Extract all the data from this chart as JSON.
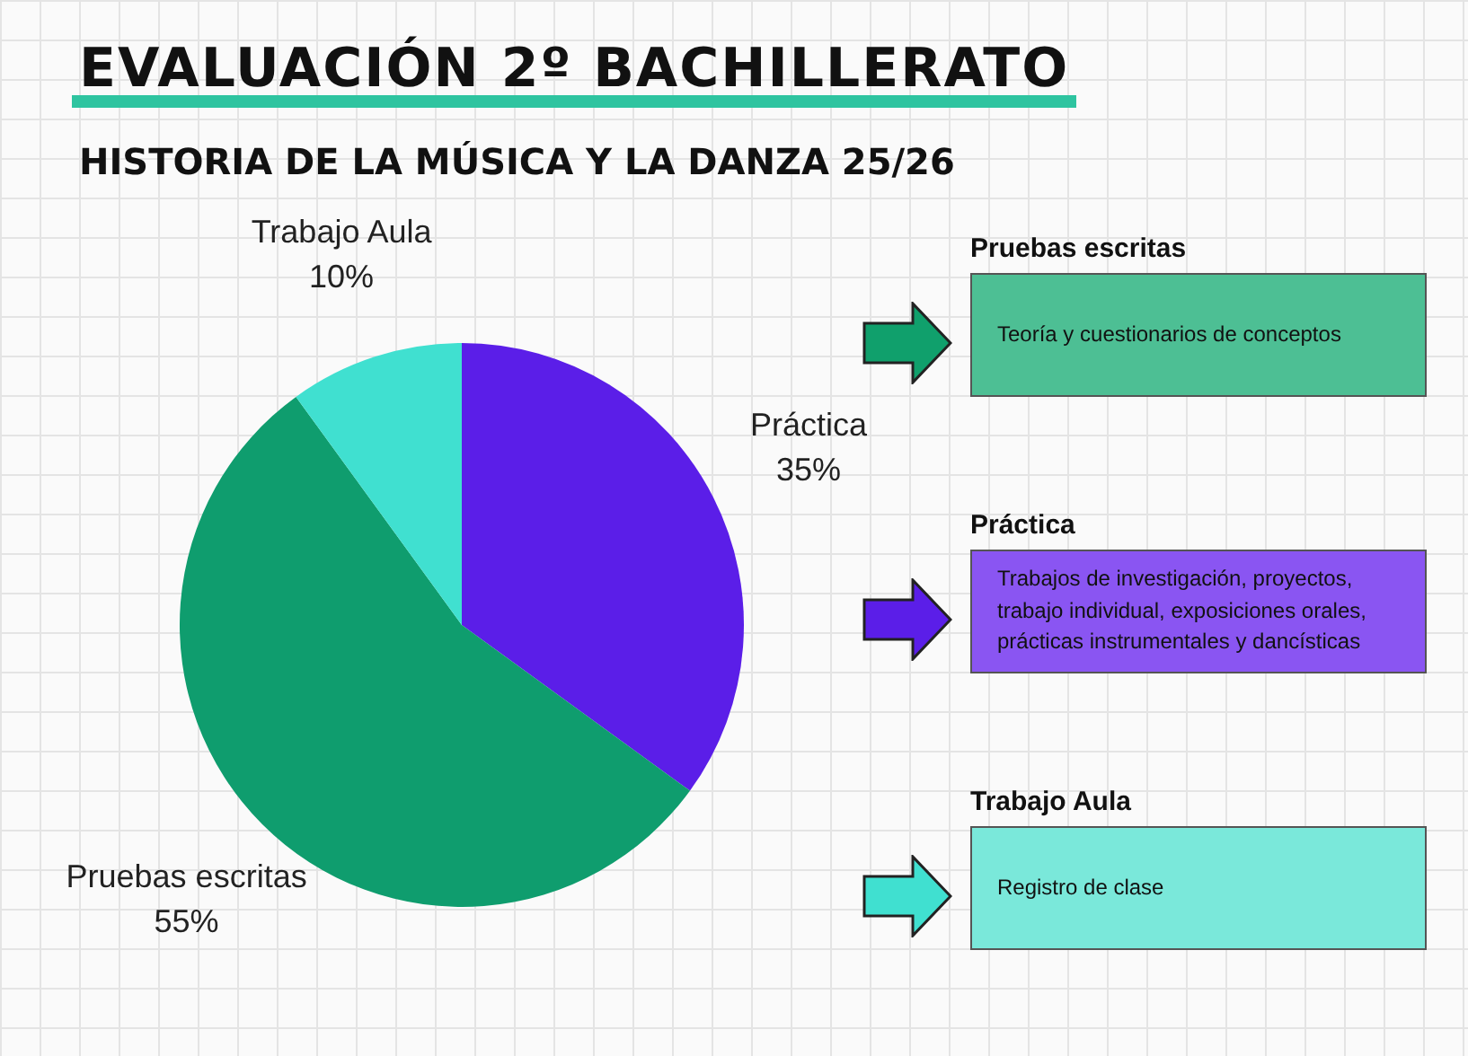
{
  "chart_data": [
    {
      "type": "pie",
      "title": "EVALUACIÓN 2º BACHILLERATO",
      "subtitle": "HISTORIA DE LA MÚSICA Y LA DANZA 25/26",
      "categories": [
        "Práctica",
        "Pruebas escritas",
        "Trabajo Aula"
      ],
      "values": [
        35,
        55,
        10
      ],
      "colors": [
        "#5b1ee8",
        "#0f9d6e",
        "#40e0d0"
      ],
      "value_labels": [
        "35%",
        "55%",
        "10%"
      ],
      "legend": false
    },
    {
      "type": "other",
      "annotations": [
        "Pruebas escritas",
        "Teoría y cuestionarios de conceptos",
        "Práctica",
        "Trabajos de investigación, proyectos, trabajo individual, exposiciones orales, prácticas instrumentales y dancísticas",
        "Trabajo Aula",
        "Registro de clase"
      ]
    }
  ]
}
